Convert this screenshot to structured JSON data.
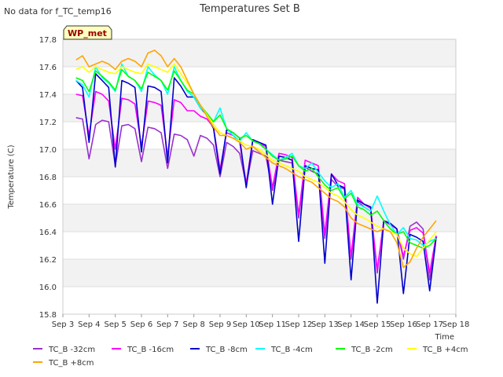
{
  "no_data_note": "No data for f_TC_temp16",
  "station_badge": "WP_met",
  "chart_data": {
    "type": "line",
    "title": "Temperatures Set B",
    "xlabel": "Time",
    "ylabel": "Temperature (C)",
    "xlim": [
      3,
      18
    ],
    "ylim": [
      15.8,
      17.8
    ],
    "y_ticks": [
      "15.8",
      "16.0",
      "16.2",
      "16.4",
      "16.6",
      "16.8",
      "17.0",
      "17.2",
      "17.4",
      "17.6",
      "17.8"
    ],
    "x_tick_positions": [
      3,
      4,
      5,
      6,
      7,
      8,
      9,
      10,
      11,
      12,
      13,
      14,
      15,
      16,
      17,
      18
    ],
    "x_ticks": [
      "Sep 3",
      "Sep 4",
      "Sep 5",
      "Sep 6",
      "Sep 7",
      "Sep 8",
      "Sep 9",
      "Sep 10",
      "Sep 11",
      "Sep 12",
      "Sep 13",
      "Sep 14",
      "Sep 15",
      "Sep 16",
      "Sep 17",
      "Sep 18"
    ],
    "grid": true,
    "legend_position": "bottom",
    "x": [
      3.5,
      3.75,
      4.0,
      4.25,
      4.5,
      4.75,
      5.0,
      5.25,
      5.5,
      5.75,
      6.0,
      6.25,
      6.5,
      6.75,
      7.0,
      7.25,
      7.5,
      7.75,
      8.0,
      8.25,
      8.5,
      8.75,
      9.0,
      9.25,
      9.5,
      9.75,
      10.0,
      10.25,
      10.5,
      10.75,
      11.0,
      11.25,
      11.5,
      11.75,
      12.0,
      12.25,
      12.5,
      12.75,
      13.0,
      13.25,
      13.5,
      13.75,
      14.0,
      14.25,
      14.5,
      14.75,
      15.0,
      15.25,
      15.5,
      15.75,
      16.0,
      16.25,
      16.5,
      16.75,
      17.0,
      17.25
    ],
    "series": [
      {
        "name": "TC_B -32cm",
        "color": "#9932cc",
        "values": [
          17.23,
          17.22,
          16.93,
          17.18,
          17.21,
          17.2,
          16.88,
          17.17,
          17.18,
          17.15,
          16.91,
          17.16,
          17.15,
          17.12,
          16.86,
          17.11,
          17.1,
          17.07,
          16.95,
          17.1,
          17.08,
          17.03,
          16.8,
          17.05,
          17.02,
          16.97,
          16.74,
          16.99,
          16.97,
          16.95,
          16.7,
          16.92,
          16.91,
          16.9,
          16.5,
          16.87,
          16.84,
          16.82,
          16.35,
          16.78,
          16.73,
          16.71,
          16.2,
          16.62,
          16.58,
          16.55,
          16.1,
          16.48,
          16.46,
          16.42,
          16.2,
          16.44,
          16.47,
          16.42,
          16.05,
          16.37
        ]
      },
      {
        "name": "TC_B -16cm",
        "color": "#ff00ff",
        "values": [
          17.4,
          17.39,
          17.1,
          17.42,
          17.4,
          17.35,
          17.0,
          17.37,
          17.36,
          17.33,
          17.02,
          17.35,
          17.34,
          17.32,
          16.95,
          17.36,
          17.34,
          17.28,
          17.28,
          17.24,
          17.22,
          17.16,
          16.85,
          17.12,
          17.1,
          17.05,
          16.75,
          17.07,
          17.04,
          17.02,
          16.72,
          16.97,
          16.96,
          16.94,
          16.52,
          16.92,
          16.9,
          16.88,
          16.38,
          16.82,
          16.77,
          16.75,
          16.22,
          16.65,
          16.6,
          16.57,
          16.12,
          16.48,
          16.45,
          16.42,
          16.22,
          16.41,
          16.43,
          16.39,
          16.1,
          16.37
        ]
      },
      {
        "name": "TC_B -8cm",
        "color": "#0000cd",
        "values": [
          17.5,
          17.45,
          17.05,
          17.55,
          17.5,
          17.45,
          16.87,
          17.5,
          17.48,
          17.45,
          16.98,
          17.46,
          17.45,
          17.42,
          16.9,
          17.52,
          17.46,
          17.38,
          17.38,
          17.3,
          17.25,
          17.15,
          16.82,
          17.14,
          17.12,
          17.08,
          16.72,
          17.07,
          17.05,
          17.03,
          16.6,
          16.95,
          16.94,
          16.92,
          16.33,
          16.88,
          16.86,
          16.85,
          16.17,
          16.82,
          16.74,
          16.72,
          16.05,
          16.63,
          16.6,
          16.58,
          15.88,
          16.48,
          16.46,
          16.42,
          15.95,
          16.38,
          16.36,
          16.33,
          15.97,
          16.36
        ]
      },
      {
        "name": "TC_B -4cm",
        "color": "#00ffff",
        "values": [
          17.5,
          17.47,
          17.38,
          17.6,
          17.52,
          17.48,
          17.42,
          17.62,
          17.53,
          17.5,
          17.42,
          17.6,
          17.54,
          17.5,
          17.4,
          17.6,
          17.5,
          17.42,
          17.38,
          17.3,
          17.26,
          17.2,
          17.3,
          17.15,
          17.1,
          17.06,
          17.12,
          17.06,
          17.04,
          17.0,
          16.96,
          16.92,
          16.94,
          16.97,
          16.88,
          16.86,
          16.9,
          16.83,
          16.77,
          16.72,
          16.75,
          16.65,
          16.7,
          16.6,
          16.58,
          16.55,
          16.66,
          16.55,
          16.45,
          16.38,
          16.43,
          16.35,
          16.34,
          16.3,
          16.33,
          16.35
        ]
      },
      {
        "name": "TC_B -2cm",
        "color": "#00ff00",
        "values": [
          17.52,
          17.5,
          17.42,
          17.57,
          17.53,
          17.49,
          17.43,
          17.58,
          17.53,
          17.5,
          17.44,
          17.56,
          17.53,
          17.5,
          17.43,
          17.57,
          17.5,
          17.43,
          17.4,
          17.32,
          17.26,
          17.2,
          17.25,
          17.15,
          17.12,
          17.08,
          17.1,
          17.06,
          17.04,
          17.0,
          16.95,
          16.92,
          16.93,
          16.95,
          16.88,
          16.84,
          16.86,
          16.8,
          16.74,
          16.7,
          16.72,
          16.64,
          16.68,
          16.58,
          16.56,
          16.52,
          16.55,
          16.48,
          16.42,
          16.38,
          16.4,
          16.32,
          16.3,
          16.28,
          16.3,
          16.35
        ]
      },
      {
        "name": "TC_B +4cm",
        "color": "#ffff00",
        "values": [
          17.58,
          17.6,
          17.56,
          17.6,
          17.58,
          17.56,
          17.55,
          17.6,
          17.58,
          17.56,
          17.55,
          17.62,
          17.6,
          17.58,
          17.56,
          17.62,
          17.55,
          17.48,
          17.4,
          17.32,
          17.25,
          17.18,
          17.12,
          17.1,
          17.08,
          17.06,
          17.03,
          17.02,
          17.0,
          16.96,
          16.92,
          16.9,
          16.88,
          16.86,
          16.84,
          16.8,
          16.78,
          16.76,
          16.72,
          16.68,
          16.66,
          16.62,
          16.56,
          16.52,
          16.5,
          16.47,
          16.44,
          16.42,
          16.4,
          16.38,
          16.28,
          16.24,
          16.22,
          16.28,
          16.34,
          16.4
        ]
      },
      {
        "name": "TC_B +8cm",
        "color": "#ffa500",
        "values": [
          17.65,
          17.68,
          17.6,
          17.62,
          17.64,
          17.62,
          17.58,
          17.64,
          17.66,
          17.64,
          17.6,
          17.7,
          17.72,
          17.68,
          17.6,
          17.66,
          17.6,
          17.5,
          17.4,
          17.32,
          17.24,
          17.16,
          17.1,
          17.1,
          17.08,
          17.05,
          17.0,
          17.02,
          16.98,
          16.94,
          16.9,
          16.88,
          16.86,
          16.83,
          16.8,
          16.78,
          16.76,
          16.72,
          16.68,
          16.64,
          16.62,
          16.58,
          16.5,
          16.46,
          16.44,
          16.42,
          16.4,
          16.42,
          16.4,
          16.32,
          16.14,
          16.18,
          16.28,
          16.36,
          16.42,
          16.48
        ]
      }
    ]
  }
}
